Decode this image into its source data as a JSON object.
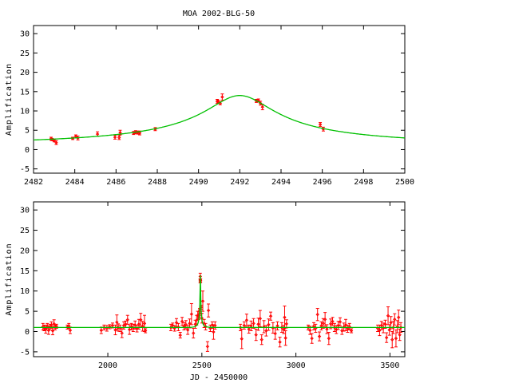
{
  "chart_data": [
    {
      "type": "scatter",
      "title": "MOA 2002-BLG-50",
      "xlabel": "",
      "ylabel": "Amplification",
      "xlim": [
        2482,
        2500
      ],
      "ylim": [
        -6.1,
        32.1
      ],
      "xticks": [
        "2482",
        "2484",
        "2486",
        "2488",
        "2490",
        "2492",
        "2494",
        "2496",
        "2498",
        "2500"
      ],
      "yticks": [
        "-5",
        "0",
        "5",
        "10",
        "15",
        "20",
        "25",
        "30"
      ],
      "grid": false,
      "data_color": "#ff0000",
      "model_color": "#00c000",
      "model": {
        "type": "paczynski",
        "t0": 2492,
        "tE": 23.6,
        "u0": 0.0716,
        "baseline": 1
      },
      "points": [
        [
          2482.85,
          2.8,
          0.4
        ],
        [
          2482.9,
          2.6,
          0.3
        ],
        [
          2483.0,
          2.3,
          0.3
        ],
        [
          2483.1,
          1.8,
          0.5
        ],
        [
          2483.9,
          2.9,
          0.3
        ],
        [
          2484.05,
          3.4,
          0.4
        ],
        [
          2484.15,
          3.0,
          0.5
        ],
        [
          2485.1,
          4.0,
          0.6
        ],
        [
          2485.95,
          3.2,
          0.5
        ],
        [
          2486.15,
          3.1,
          0.5
        ],
        [
          2486.2,
          4.4,
          0.6
        ],
        [
          2486.85,
          4.3,
          0.4
        ],
        [
          2486.95,
          4.5,
          0.4
        ],
        [
          2487.05,
          4.4,
          0.4
        ],
        [
          2487.15,
          4.3,
          0.5
        ],
        [
          2487.9,
          5.3,
          0.4
        ],
        [
          2490.9,
          12.5,
          0.5
        ],
        [
          2490.95,
          12.4,
          0.4
        ],
        [
          2491.05,
          12.0,
          0.4
        ],
        [
          2491.15,
          13.6,
          0.8
        ],
        [
          2492.8,
          12.6,
          0.4
        ],
        [
          2492.9,
          12.7,
          0.4
        ],
        [
          2493.0,
          12.0,
          0.5
        ],
        [
          2493.1,
          11.0,
          0.7
        ],
        [
          2495.9,
          6.5,
          0.5
        ],
        [
          2496.05,
          5.3,
          0.5
        ]
      ]
    },
    {
      "type": "scatter",
      "title": "",
      "xlabel": "JD - 2450000",
      "ylabel": "Amplification",
      "xlim": [
        1605,
        3579
      ],
      "ylim": [
        -6.2,
        32.0
      ],
      "xticks": [
        "2000",
        "2500",
        "3000",
        "3500"
      ],
      "yticks": [
        "-5",
        "0",
        "5",
        "10",
        "15",
        "20",
        "25",
        "30"
      ],
      "grid": false,
      "data_color": "#ff0000",
      "model_color": "#00c000",
      "model": {
        "type": "paczynski",
        "t0": 2492,
        "tE": 23.6,
        "u0": 0.0716,
        "baseline": 1
      },
      "points": [
        [
          1655,
          1.2,
          0.8
        ],
        [
          1662,
          0.9,
          0.7
        ],
        [
          1670,
          0.5,
          0.9
        ],
        [
          1678,
          1.4,
          0.6
        ],
        [
          1685,
          0.3,
          1.0
        ],
        [
          1692,
          1.1,
          0.7
        ],
        [
          1700,
          1.6,
          0.8
        ],
        [
          1707,
          0.2,
          1.0
        ],
        [
          1714,
          1.9,
          1.0
        ],
        [
          1720,
          1.0,
          0.6
        ],
        [
          1727,
          1.3,
          0.5
        ],
        [
          1785,
          1.1,
          0.5
        ],
        [
          1793,
          1.4,
          0.6
        ],
        [
          1800,
          0.3,
          0.8
        ],
        [
          1965,
          0.3,
          0.8
        ],
        [
          1980,
          1.0,
          0.6
        ],
        [
          1995,
          0.8,
          0.7
        ],
        [
          2010,
          1.2,
          0.5
        ],
        [
          2025,
          1.5,
          0.6
        ],
        [
          2040,
          0.4,
          1.2
        ],
        [
          2048,
          2.3,
          1.8
        ],
        [
          2055,
          1.0,
          0.9
        ],
        [
          2065,
          0.8,
          0.8
        ],
        [
          2075,
          -0.4,
          1.1
        ],
        [
          2085,
          1.5,
          0.9
        ],
        [
          2095,
          1.8,
          0.8
        ],
        [
          2105,
          2.9,
          1.1
        ],
        [
          2115,
          0.5,
          1.2
        ],
        [
          2125,
          1.2,
          0.8
        ],
        [
          2135,
          0.9,
          0.9
        ],
        [
          2145,
          1.6,
          1.0
        ],
        [
          2155,
          0.7,
          0.8
        ],
        [
          2165,
          1.8,
          1.2
        ],
        [
          2175,
          2.9,
          1.6
        ],
        [
          2185,
          1.3,
          1.2
        ],
        [
          2195,
          2.0,
          2.0
        ],
        [
          2200,
          0.2,
          0.5
        ],
        [
          2335,
          1.0,
          0.8
        ],
        [
          2345,
          1.5,
          0.6
        ],
        [
          2355,
          0.8,
          0.7
        ],
        [
          2365,
          2.2,
          1.0
        ],
        [
          2375,
          1.1,
          0.9
        ],
        [
          2385,
          -0.9,
          0.7
        ],
        [
          2395,
          2.5,
          1.0
        ],
        [
          2405,
          1.3,
          0.9
        ],
        [
          2415,
          1.7,
          1.0
        ],
        [
          2425,
          0.4,
          1.1
        ],
        [
          2435,
          2.0,
          1.1
        ],
        [
          2445,
          4.3,
          2.6
        ],
        [
          2455,
          -0.4,
          1.2
        ],
        [
          2465,
          1.8,
          1.0
        ],
        [
          2472,
          2.8,
          1.2
        ],
        [
          2478,
          4.0,
          1.0
        ],
        [
          2484,
          3.4,
          0.4
        ],
        [
          2487,
          4.4,
          0.4
        ],
        [
          2488,
          5.3,
          0.4
        ],
        [
          2491,
          12.5,
          0.5
        ],
        [
          2491.5,
          13.6,
          0.8
        ],
        [
          2493,
          12.6,
          0.4
        ],
        [
          2496,
          6.0,
          0.5
        ],
        [
          2500,
          3.3,
          1.2
        ],
        [
          2505,
          7.5,
          2.5
        ],
        [
          2512,
          2.0,
          1.0
        ],
        [
          2520,
          1.2,
          0.8
        ],
        [
          2530,
          -3.7,
          1.2
        ],
        [
          2535,
          5.2,
          1.6
        ],
        [
          2545,
          0.8,
          0.8
        ],
        [
          2555,
          1.6,
          0.8
        ],
        [
          2562,
          -0.1,
          1.8
        ],
        [
          2570,
          1.5,
          0.9
        ],
        [
          2705,
          1.0,
          0.8
        ],
        [
          2712,
          -1.8,
          2.4
        ],
        [
          2725,
          1.5,
          0.9
        ],
        [
          2738,
          2.8,
          1.5
        ],
        [
          2750,
          0.6,
          1.0
        ],
        [
          2762,
          1.4,
          1.2
        ],
        [
          2775,
          2.0,
          1.2
        ],
        [
          2788,
          -0.8,
          1.4
        ],
        [
          2800,
          1.8,
          1.5
        ],
        [
          2810,
          3.2,
          2.0
        ],
        [
          2818,
          -2.0,
          1.2
        ],
        [
          2830,
          1.2,
          1.5
        ],
        [
          2842,
          0.2,
          1.3
        ],
        [
          2855,
          1.7,
          1.4
        ],
        [
          2866,
          3.8,
          1.0
        ],
        [
          2878,
          0.9,
          1.3
        ],
        [
          2890,
          -0.5,
          1.4
        ],
        [
          2902,
          1.4,
          1.0
        ],
        [
          2915,
          -2.6,
          1.2
        ],
        [
          2925,
          1.0,
          1.2
        ],
        [
          2935,
          0.5,
          1.0
        ],
        [
          2940,
          3.5,
          2.8
        ],
        [
          2945,
          -1.6,
          1.8
        ],
        [
          2950,
          1.9,
          1.0
        ],
        [
          3065,
          1.0,
          0.6
        ],
        [
          3075,
          0.3,
          1.0
        ],
        [
          3085,
          -1.7,
          1.2
        ],
        [
          3095,
          1.3,
          0.9
        ],
        [
          3105,
          0.8,
          1.0
        ],
        [
          3115,
          4.2,
          1.5
        ],
        [
          3125,
          -1.2,
          1.1
        ],
        [
          3135,
          1.4,
          1.0
        ],
        [
          3145,
          2.0,
          1.2
        ],
        [
          3155,
          3.0,
          1.7
        ],
        [
          3165,
          0.6,
          1.1
        ],
        [
          3175,
          -1.7,
          1.5
        ],
        [
          3185,
          1.9,
          1.2
        ],
        [
          3195,
          2.5,
          1.0
        ],
        [
          3205,
          1.0,
          1.0
        ],
        [
          3215,
          0.5,
          1.0
        ],
        [
          3225,
          1.5,
          1.0
        ],
        [
          3235,
          2.4,
          1.0
        ],
        [
          3245,
          0.2,
          0.9
        ],
        [
          3255,
          1.1,
          1.0
        ],
        [
          3265,
          1.6,
          1.4
        ],
        [
          3275,
          0.7,
          0.9
        ],
        [
          3285,
          1.2,
          0.8
        ],
        [
          3295,
          0.2,
          0.5
        ],
        [
          3435,
          0.8,
          0.8
        ],
        [
          3445,
          0.3,
          1.3
        ],
        [
          3455,
          1.5,
          1.0
        ],
        [
          3465,
          0.9,
          1.2
        ],
        [
          3475,
          1.8,
          1.0
        ],
        [
          3482,
          -1.5,
          1.2
        ],
        [
          3490,
          3.9,
          2.2
        ],
        [
          3497,
          0.4,
          1.3
        ],
        [
          3505,
          2.2,
          1.5
        ],
        [
          3512,
          -2.0,
          2.0
        ],
        [
          3518,
          1.0,
          1.5
        ],
        [
          3525,
          3.0,
          1.4
        ],
        [
          3532,
          -1.7,
          2.1
        ],
        [
          3540,
          1.2,
          1.5
        ],
        [
          3546,
          3.5,
          1.8
        ],
        [
          3552,
          -0.8,
          1.4
        ],
        [
          3558,
          1.0,
          1.2
        ]
      ]
    }
  ]
}
